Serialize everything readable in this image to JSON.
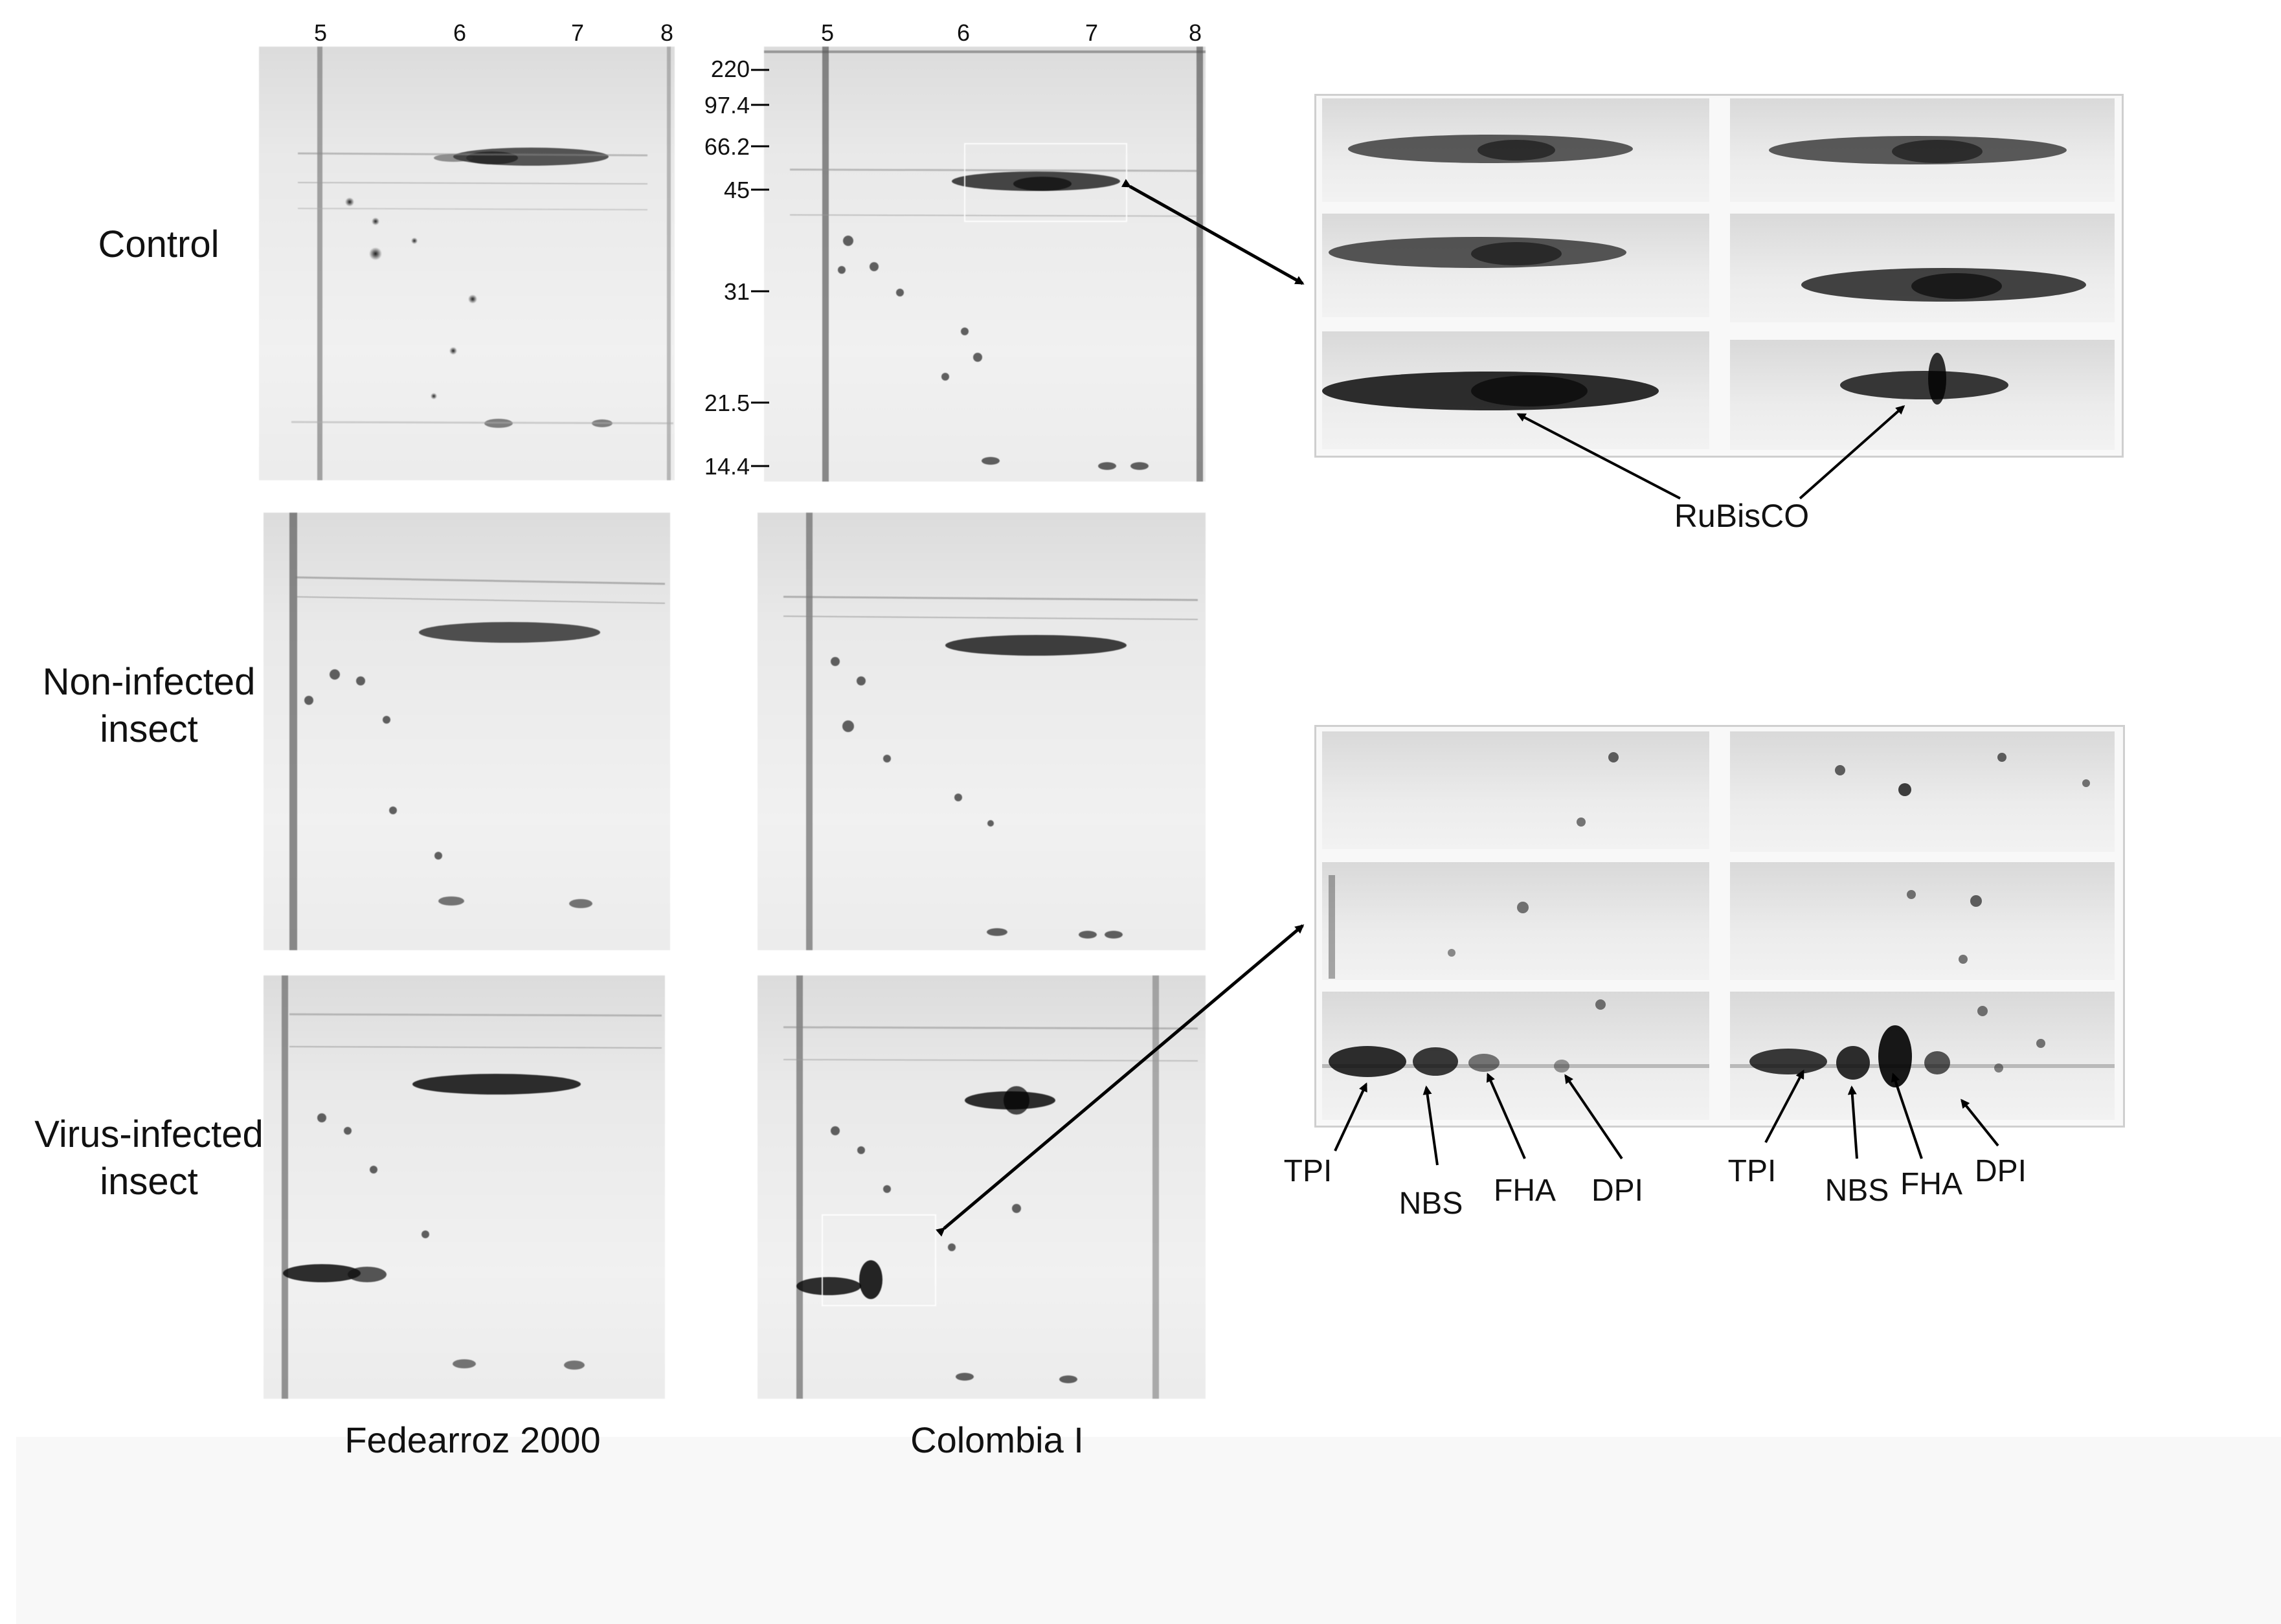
{
  "columns": {
    "left": "Fedearroz 2000",
    "right": "Colombia I"
  },
  "rows": {
    "control": "Control",
    "non_infected": "Non-infected\ninsect",
    "virus_infected": "Virus-infected\ninsect"
  },
  "ph_ticks_left": [
    "5",
    "6",
    "7",
    "8"
  ],
  "ph_ticks_right": [
    "5",
    "6",
    "7",
    "8"
  ],
  "mw_markers": [
    "220",
    "97.4",
    "66.2",
    "45",
    "31",
    "21.5",
    "14.4"
  ],
  "annotations": {
    "rubisco": "RuBisCO",
    "left_set": [
      "TPI",
      "NBS",
      "FHA",
      "DPI"
    ],
    "right_set": [
      "TPI",
      "NBS",
      "FHA",
      "DPI"
    ]
  }
}
